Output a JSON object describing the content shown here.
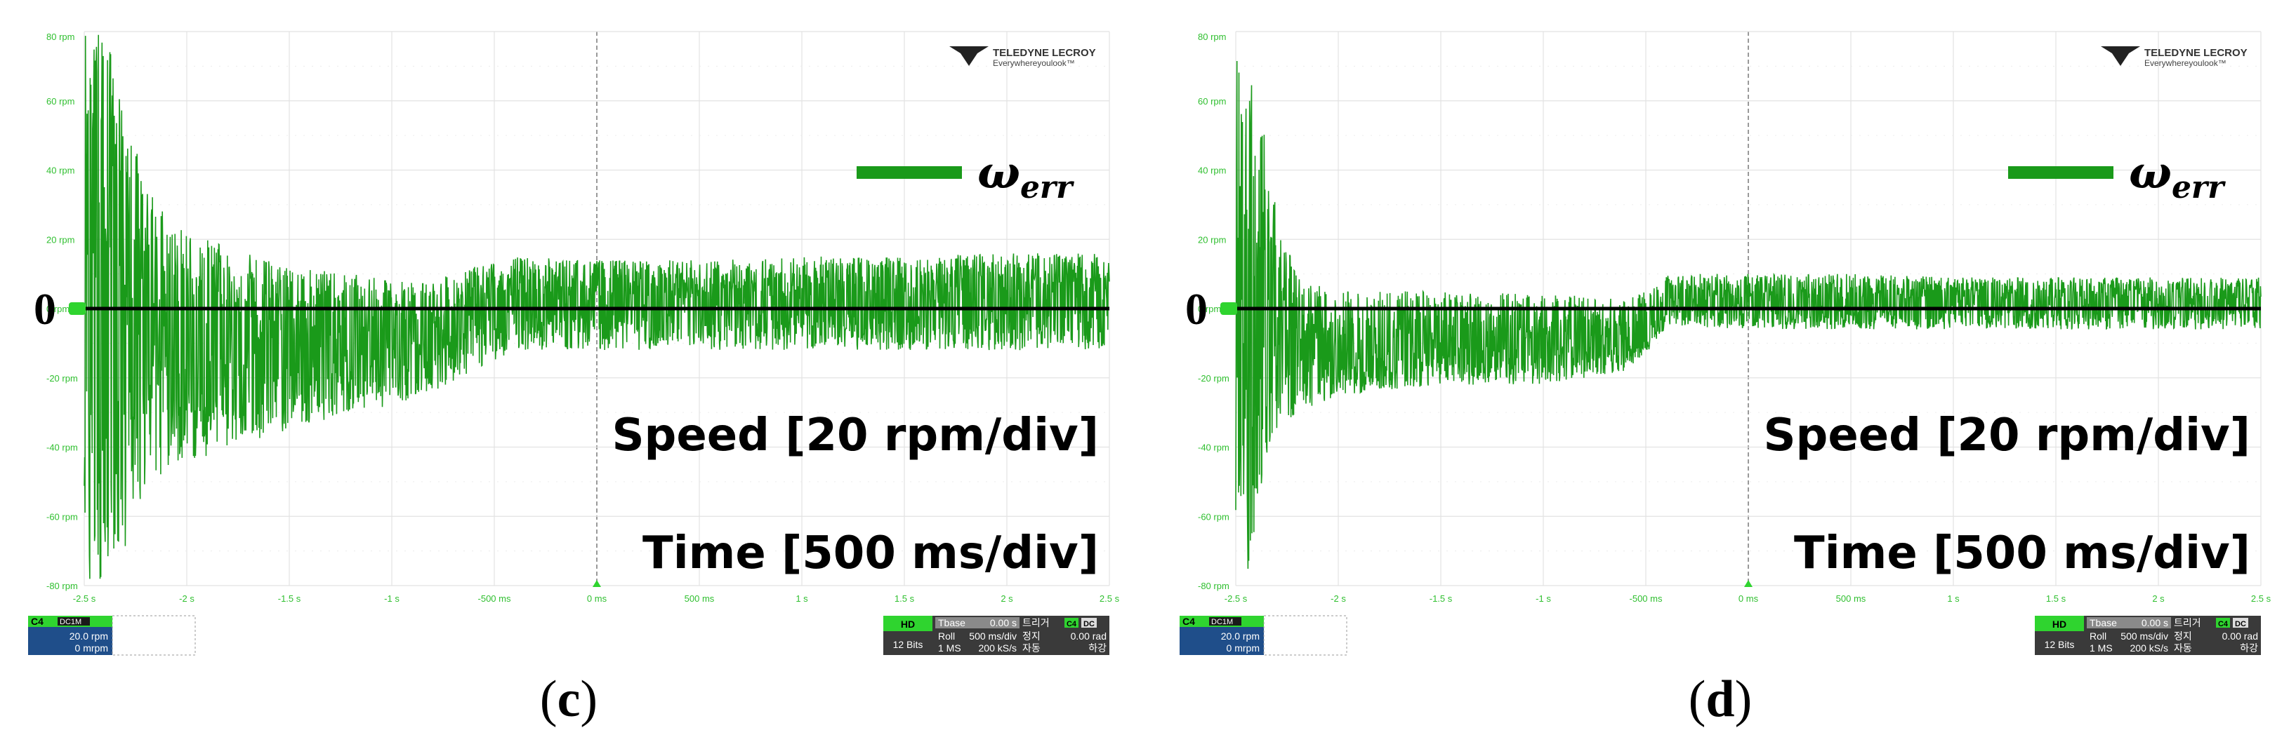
{
  "panels": [
    {
      "caption_letter": "c",
      "legend_symbol": "ω",
      "legend_subscript": "err",
      "speed_label": "Speed [20 rpm/div]",
      "time_label": "Time [500 ms/div]",
      "zero_label": "0",
      "brand_line1": "TELEDYNE LECROY",
      "brand_line2": "Everywhereyoulook™",
      "channel_box": {
        "channel": "C4",
        "coupling": "DC1M",
        "scale": "20.0 rpm",
        "offset": "0 mrpm"
      },
      "status_box": {
        "hd": "HD",
        "bits": "12 Bits",
        "tbase_label": "Tbase",
        "tbase_value": "0.00 s",
        "trigger_label": "트리거",
        "roll": "Roll",
        "time_div": "500 ms/div",
        "stop": "정지",
        "memory": "1 MS",
        "sample_rate": "200 kS/s",
        "auto": "자동",
        "c4": "C4",
        "dc": "DC",
        "level": "0.00 rad",
        "edge": "하강"
      }
    },
    {
      "caption_letter": "d",
      "legend_symbol": "ω",
      "legend_subscript": "err",
      "speed_label": "Speed [20 rpm/div]",
      "time_label": "Time [500 ms/div]",
      "zero_label": "0",
      "brand_line1": "TELEDYNE LECROY",
      "brand_line2": "Everywhereyoulook™",
      "channel_box": {
        "channel": "C4",
        "coupling": "DC1M",
        "scale": "20.0 rpm",
        "offset": "0 mrpm"
      },
      "status_box": {
        "hd": "HD",
        "bits": "12 Bits",
        "tbase_label": "Tbase",
        "tbase_value": "0.00 s",
        "trigger_label": "트리거",
        "roll": "Roll",
        "time_div": "500 ms/div",
        "stop": "정지",
        "memory": "1 MS",
        "sample_rate": "200 kS/s",
        "auto": "자동",
        "c4": "C4",
        "dc": "DC",
        "level": "0.00 rad",
        "edge": "하강"
      }
    }
  ],
  "chart_data": [
    {
      "type": "line",
      "title": "",
      "xlabel": "Time [500 ms/div]",
      "ylabel": "Speed [20 rpm/div]",
      "xlim": [
        -2.5,
        2.5
      ],
      "ylim": [
        -80,
        80
      ],
      "x_ticks": [
        "-2.5 s",
        "-2 s",
        "-1.5 s",
        "-1 s",
        "-500 ms",
        "0 ms",
        "500 ms",
        "1 s",
        "1.5 s",
        "2 s",
        "2.5 s"
      ],
      "y_ticks": [
        "80 rpm",
        "60 rpm",
        "40 rpm",
        "20 rpm",
        "0 rpm",
        "-20 rpm",
        "-40 rpm",
        "-60 rpm",
        "-80 rpm"
      ],
      "grid": true,
      "series": [
        {
          "name": "ω_err",
          "color": "#1a9a1a",
          "envelope_x": [
            -2.5,
            -2.4,
            -2.3,
            -2.2,
            -2.0,
            -1.8,
            -1.5,
            -1.2,
            -1.0,
            -0.8,
            -0.6,
            -0.4,
            0.0,
            0.5,
            1.0,
            1.5,
            2.0,
            2.5
          ],
          "envelope_upper": [
            80,
            80,
            60,
            35,
            22,
            18,
            12,
            10,
            8,
            8,
            12,
            15,
            14,
            14,
            15,
            15,
            16,
            16
          ],
          "envelope_lower": [
            -80,
            -80,
            -70,
            -50,
            -45,
            -40,
            -35,
            -30,
            -28,
            -24,
            -18,
            -12,
            -12,
            -12,
            -12,
            -12,
            -12,
            -12
          ],
          "mean_x": [
            -2.5,
            -2.0,
            -1.5,
            -1.0,
            -0.7,
            -0.4,
            0.0,
            2.5
          ],
          "mean_y": [
            -5,
            -12,
            -10,
            -8,
            -6,
            2,
            2,
            2
          ]
        },
        {
          "name": "0 reference",
          "color": "#000000",
          "x": [
            -2.5,
            2.5
          ],
          "y": [
            0,
            0
          ]
        }
      ]
    },
    {
      "type": "line",
      "title": "",
      "xlabel": "Time [500 ms/div]",
      "ylabel": "Speed [20 rpm/div]",
      "xlim": [
        -2.5,
        2.5
      ],
      "ylim": [
        -80,
        80
      ],
      "x_ticks": [
        "-2.5 s",
        "-2 s",
        "-1.5 s",
        "-1 s",
        "-500 ms",
        "0 ms",
        "500 ms",
        "1 s",
        "1.5 s",
        "2 s",
        "2.5 s"
      ],
      "y_ticks": [
        "80 rpm",
        "60 rpm",
        "40 rpm",
        "20 rpm",
        "0 rpm",
        "-20 rpm",
        "-40 rpm",
        "-60 rpm",
        "-80 rpm"
      ],
      "grid": true,
      "series": [
        {
          "name": "ω_err",
          "color": "#1a9a1a",
          "envelope_x": [
            -2.5,
            -2.45,
            -2.4,
            -2.3,
            -2.2,
            -2.0,
            -1.5,
            -1.0,
            -0.6,
            -0.45,
            -0.4,
            0.0,
            0.5,
            1.0,
            1.5,
            2.0,
            2.5
          ],
          "envelope_upper": [
            72,
            72,
            65,
            30,
            10,
            5,
            5,
            4,
            4,
            6,
            10,
            10,
            10,
            9,
            9,
            9,
            9
          ],
          "envelope_lower": [
            -80,
            -80,
            -60,
            -35,
            -30,
            -25,
            -22,
            -22,
            -18,
            -10,
            -5,
            -6,
            -6,
            -6,
            -6,
            -6,
            -6
          ],
          "mean_x": [
            -2.5,
            -2.2,
            -2.0,
            -1.5,
            -1.0,
            -0.6,
            -0.45,
            -0.4,
            2.5
          ],
          "mean_y": [
            -5,
            -10,
            -12,
            -10,
            -10,
            -10,
            -6,
            2,
            2
          ]
        },
        {
          "name": "0 reference",
          "color": "#000000",
          "x": [
            -2.5,
            2.5
          ],
          "y": [
            0,
            0
          ]
        }
      ]
    }
  ]
}
